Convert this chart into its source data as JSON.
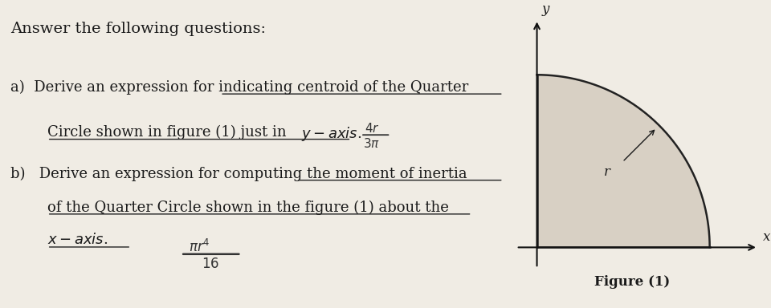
{
  "bg_color": "#f0ece4",
  "text_color": "#1a1a1a",
  "title": "Answer the following questions:",
  "figure_caption": "Figure (1)",
  "figure_label_r": "r",
  "figure_label_x": "x",
  "figure_label_y": "y",
  "quarter_circle_color": "#d8d0c4",
  "quarter_circle_edge_color": "#222222",
  "axis_color": "#111111",
  "title_fontsize": 14,
  "body_fontsize": 13,
  "line_color": "#222222",
  "handwritten_color": "#333333"
}
